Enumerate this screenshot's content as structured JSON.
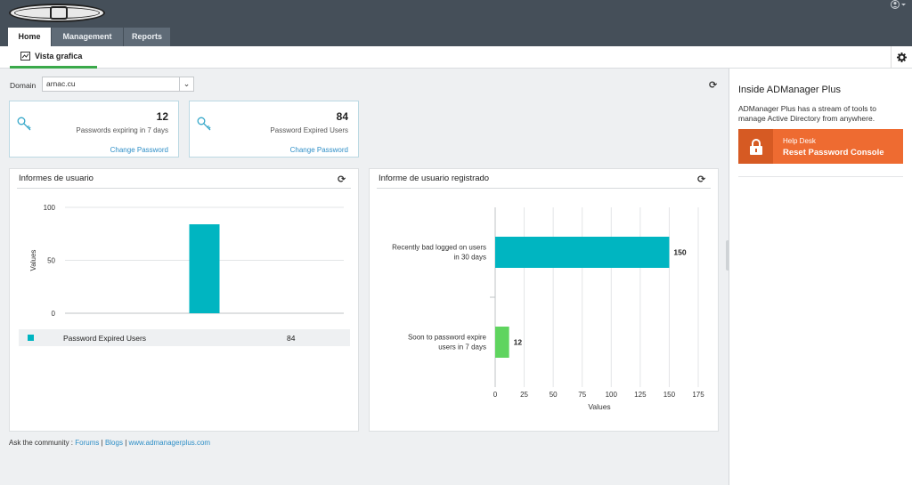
{
  "header": {
    "user_icon": "user-circle-icon",
    "tabs": [
      {
        "label": "Home",
        "active": true
      },
      {
        "label": "Management",
        "active": false
      },
      {
        "label": "Reports",
        "active": false
      }
    ]
  },
  "subnav": {
    "tab_label": "Vista grafica",
    "tab_icon": "line-chart-icon",
    "settings_icon": "gear-icon"
  },
  "domain": {
    "label": "Domain",
    "value": "arnac.cu"
  },
  "summary_cards": [
    {
      "count": "12",
      "description": "Passwords expiring in 7 days",
      "link": "Change Password",
      "icon": "key-icon"
    },
    {
      "count": "84",
      "description": "Password Expired Users",
      "link": "Change Password",
      "icon": "key-icon"
    }
  ],
  "panels": {
    "left_title": "Informes de usuario",
    "right_title": "Informe de usuario registrado",
    "legend": {
      "label": "Password Expired Users",
      "value": "84"
    }
  },
  "chart_data": [
    {
      "type": "bar",
      "title": "Informes de usuario",
      "ylabel": "Values",
      "ylim": [
        0,
        100
      ],
      "yticks": [
        0,
        50,
        100
      ],
      "categories": [
        "Password Expired Users"
      ],
      "values": [
        84
      ],
      "color": "#00b5c1"
    },
    {
      "type": "bar",
      "orientation": "horizontal",
      "title": "Informe de usuario registrado",
      "xlabel": "Values",
      "xlim": [
        0,
        175
      ],
      "xticks": [
        0,
        25,
        50,
        75,
        100,
        125,
        150,
        175
      ],
      "categories": [
        "Recently bad logged on users in 30 days",
        "Soon to password expire users in 7 days"
      ],
      "category_lines": [
        [
          "Recently bad logged on users",
          "in 30 days"
        ],
        [
          "Soon to password expire",
          "users in 7 days"
        ]
      ],
      "values": [
        150,
        12
      ],
      "colors": [
        "#00b5c1",
        "#5fd45f"
      ]
    }
  ],
  "footer": {
    "prefix": "Ask the community :",
    "links": [
      "Forums",
      "Blogs",
      "www.admanagerplus.com"
    ],
    "separator": "|"
  },
  "sidebar": {
    "title": "Inside ADManager Plus",
    "text": "ADManager Plus has a stream of tools to manage Active Directory from anywhere.",
    "button_line1": "Help Desk",
    "button_line2": "Reset Password Console"
  }
}
